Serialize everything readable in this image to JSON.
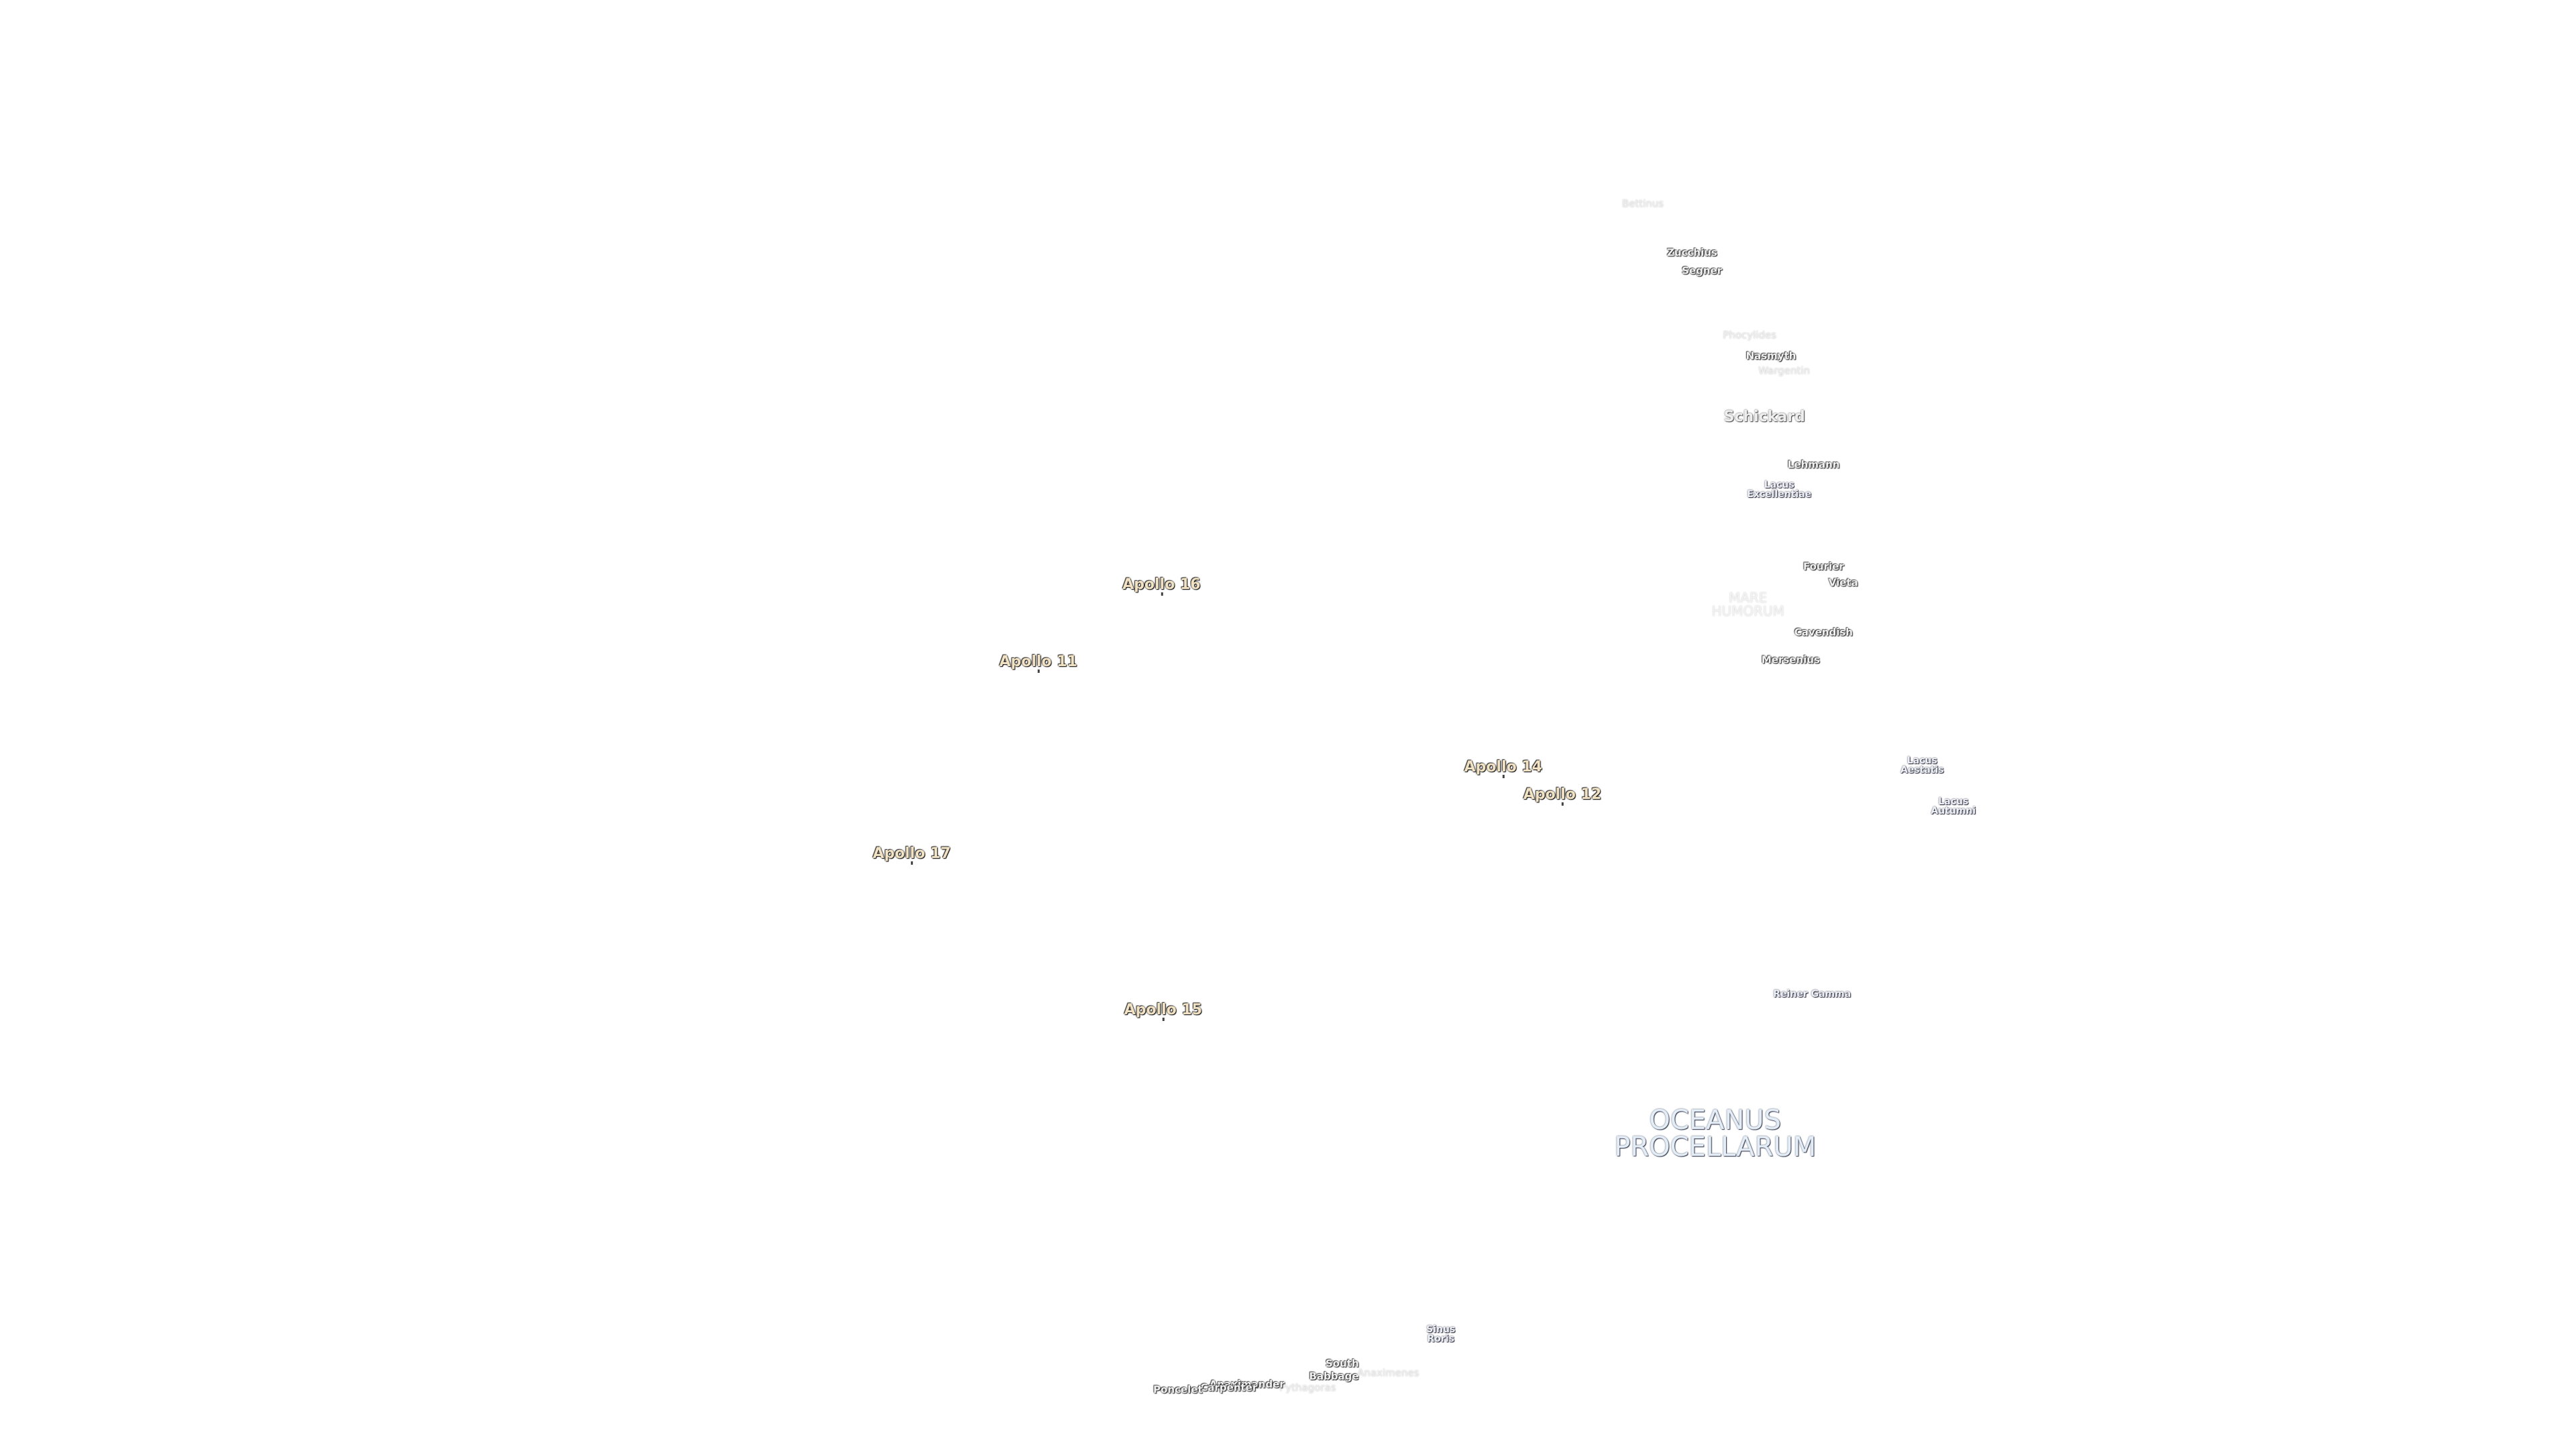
{
  "labels": [
    {
      "lines": [
        "Bettinus"
      ]
    },
    {
      "lines": [
        "Zucchius"
      ]
    },
    {
      "lines": [
        "Segner"
      ]
    },
    {
      "lines": [
        "Phocylides"
      ]
    },
    {
      "lines": [
        "Nasmyth"
      ]
    },
    {
      "lines": [
        "Wargentin"
      ]
    },
    {
      "lines": [
        "Schickard"
      ]
    },
    {
      "lines": [
        "Lehmann"
      ]
    },
    {
      "lines": [
        "Lacus",
        "Excellentiae"
      ]
    },
    {
      "lines": [
        "Fourier"
      ]
    },
    {
      "lines": [
        "Vieta"
      ]
    },
    {
      "lines": [
        "MARE",
        "HUMORUM"
      ]
    },
    {
      "lines": [
        "Cavendish"
      ]
    },
    {
      "lines": [
        "Mersenius"
      ]
    },
    {
      "lines": [
        "Apollo 16"
      ]
    },
    {
      "lines": [
        "Apollo 11"
      ]
    },
    {
      "lines": [
        "Apollo 14"
      ]
    },
    {
      "lines": [
        "Apollo 12"
      ]
    },
    {
      "lines": [
        "Apollo 17"
      ]
    },
    {
      "lines": [
        "Apollo 15"
      ]
    },
    {
      "lines": [
        "Lacus",
        "Aestatis"
      ]
    },
    {
      "lines": [
        "Lacus",
        "Autumni"
      ]
    },
    {
      "lines": [
        "Reiner Gamma"
      ]
    },
    {
      "lines": [
        "OCEANUS",
        "PROCELLARUM"
      ]
    },
    {
      "lines": [
        "Sinus",
        "Roris"
      ]
    },
    {
      "lines": [
        "South"
      ]
    },
    {
      "lines": [
        "Babbage"
      ]
    },
    {
      "lines": [
        "Anaximenes"
      ]
    },
    {
      "lines": [
        "Pythagoras"
      ]
    },
    {
      "lines": [
        "Anaximander"
      ]
    },
    {
      "lines": [
        "Carpenter"
      ]
    },
    {
      "lines": [
        "Poncelet"
      ]
    }
  ]
}
